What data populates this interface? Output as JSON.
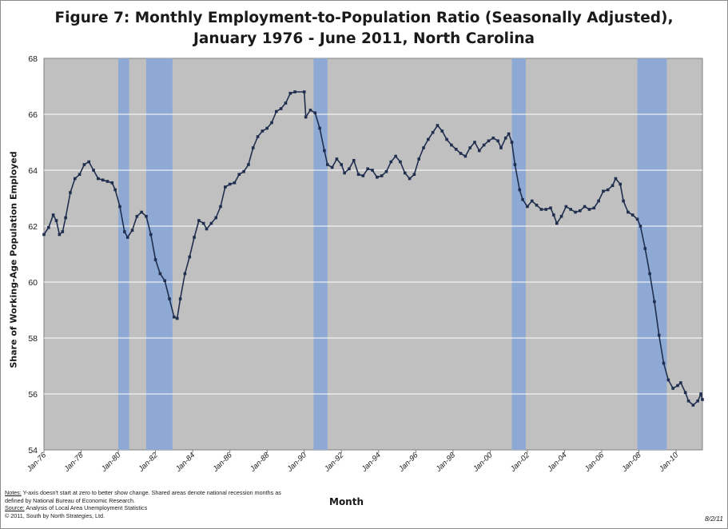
{
  "title_line1": "Figure 7: Monthly Employment-to-Population  Ratio (Seasonally Adjusted),",
  "title_line2": "January 1976 - June 2011, North Carolina",
  "notes": {
    "line1_label": "Notes:",
    "line1_text": " Y-axis doesn't start at zero to better show change.  Shared areas denote national recession months as",
    "line2_text": "defined by National Bureau of Economic Research.",
    "line3_label": "Source:",
    "line3_text": "  Analysis of Local Area Unemployment Statistics",
    "line4_text": "© 2011, South by North Strategies, Ltd."
  },
  "date_stamp": "8/2/11",
  "colors": {
    "plot_bg": "#c0c0c0",
    "gridline": "#ffffff",
    "recession": "#8eaad4",
    "series": "#1f2e4e"
  },
  "chart_data": {
    "type": "line",
    "title": "Figure 7: Monthly Employment-to-Population  Ratio (Seasonally Adjusted), January 1976 - June 2011, North Carolina",
    "xlabel": "Month",
    "ylabel": "Share of  Working-Age Population  Employed",
    "ylim": [
      54,
      68
    ],
    "yticks": [
      54,
      56,
      58,
      60,
      62,
      64,
      66,
      68
    ],
    "xlim": [
      "1976-01",
      "2011-06"
    ],
    "xticks": [
      "Jan-76",
      "Jan-78",
      "Jan-80",
      "Jan-82",
      "Jan-84",
      "Jan-86",
      "Jan-88",
      "Jan-90",
      "Jan-92",
      "Jan-94",
      "Jan-96",
      "Jan-98",
      "Jan-00",
      "Jan-02",
      "Jan-04",
      "Jan-06",
      "Jan-08",
      "Jan-10"
    ],
    "grid": true,
    "recessions": [
      {
        "start": "1980-01",
        "end": "1980-07"
      },
      {
        "start": "1981-07",
        "end": "1982-11"
      },
      {
        "start": "1990-07",
        "end": "1991-03"
      },
      {
        "start": "2001-03",
        "end": "2001-11"
      },
      {
        "start": "2007-12",
        "end": "2009-06"
      }
    ],
    "series": [
      {
        "marker": "square",
        "points": [
          [
            "1976-01",
            61.7
          ],
          [
            "1976-04",
            61.95
          ],
          [
            "1976-07",
            62.4
          ],
          [
            "1976-09",
            62.2
          ],
          [
            "1976-11",
            61.7
          ],
          [
            "1977-01",
            61.8
          ],
          [
            "1977-03",
            62.3
          ],
          [
            "1977-06",
            63.2
          ],
          [
            "1977-09",
            63.7
          ],
          [
            "1977-12",
            63.85
          ],
          [
            "1978-03",
            64.2
          ],
          [
            "1978-06",
            64.3
          ],
          [
            "1978-09",
            64.0
          ],
          [
            "1978-12",
            63.7
          ],
          [
            "1979-03",
            63.65
          ],
          [
            "1979-06",
            63.6
          ],
          [
            "1979-09",
            63.55
          ],
          [
            "1979-11",
            63.3
          ],
          [
            "1980-02",
            62.7
          ],
          [
            "1980-05",
            61.8
          ],
          [
            "1980-07",
            61.6
          ],
          [
            "1980-10",
            61.85
          ],
          [
            "1981-01",
            62.35
          ],
          [
            "1981-04",
            62.5
          ],
          [
            "1981-07",
            62.35
          ],
          [
            "1981-10",
            61.7
          ],
          [
            "1982-01",
            60.8
          ],
          [
            "1982-04",
            60.3
          ],
          [
            "1982-07",
            60.05
          ],
          [
            "1982-10",
            59.4
          ],
          [
            "1983-01",
            58.75
          ],
          [
            "1983-03",
            58.7
          ],
          [
            "1983-05",
            59.4
          ],
          [
            "1983-08",
            60.3
          ],
          [
            "1983-11",
            60.9
          ],
          [
            "1984-02",
            61.6
          ],
          [
            "1984-05",
            62.2
          ],
          [
            "1984-08",
            62.1
          ],
          [
            "1984-10",
            61.9
          ],
          [
            "1985-01",
            62.1
          ],
          [
            "1985-04",
            62.3
          ],
          [
            "1985-07",
            62.7
          ],
          [
            "1985-10",
            63.4
          ],
          [
            "1986-01",
            63.5
          ],
          [
            "1986-04",
            63.55
          ],
          [
            "1986-07",
            63.85
          ],
          [
            "1986-10",
            63.95
          ],
          [
            "1987-01",
            64.2
          ],
          [
            "1987-04",
            64.8
          ],
          [
            "1987-07",
            65.2
          ],
          [
            "1987-10",
            65.4
          ],
          [
            "1988-01",
            65.5
          ],
          [
            "1988-04",
            65.7
          ],
          [
            "1988-07",
            66.1
          ],
          [
            "1988-10",
            66.2
          ],
          [
            "1989-01",
            66.4
          ],
          [
            "1989-04",
            66.75
          ],
          [
            "1989-07",
            66.8
          ],
          [
            "1990-01",
            66.8
          ],
          [
            "1990-02",
            65.9
          ],
          [
            "1990-05",
            66.15
          ],
          [
            "1990-08",
            66.05
          ],
          [
            "1990-11",
            65.5
          ],
          [
            "1991-02",
            64.7
          ],
          [
            "1991-04",
            64.2
          ],
          [
            "1991-07",
            64.1
          ],
          [
            "1991-10",
            64.4
          ],
          [
            "1992-01",
            64.2
          ],
          [
            "1992-03",
            63.9
          ],
          [
            "1992-06",
            64.05
          ],
          [
            "1992-09",
            64.35
          ],
          [
            "1992-12",
            63.85
          ],
          [
            "1993-03",
            63.8
          ],
          [
            "1993-06",
            64.05
          ],
          [
            "1993-09",
            64.0
          ],
          [
            "1993-12",
            63.75
          ],
          [
            "1994-03",
            63.8
          ],
          [
            "1994-06",
            63.95
          ],
          [
            "1994-09",
            64.3
          ],
          [
            "1994-12",
            64.5
          ],
          [
            "1995-03",
            64.3
          ],
          [
            "1995-06",
            63.9
          ],
          [
            "1995-09",
            63.7
          ],
          [
            "1995-12",
            63.85
          ],
          [
            "1996-03",
            64.4
          ],
          [
            "1996-06",
            64.8
          ],
          [
            "1996-09",
            65.1
          ],
          [
            "1996-12",
            65.35
          ],
          [
            "1997-03",
            65.6
          ],
          [
            "1997-06",
            65.4
          ],
          [
            "1997-09",
            65.1
          ],
          [
            "1997-12",
            64.9
          ],
          [
            "1998-03",
            64.75
          ],
          [
            "1998-06",
            64.6
          ],
          [
            "1998-09",
            64.5
          ],
          [
            "1998-12",
            64.8
          ],
          [
            "1999-03",
            65.0
          ],
          [
            "1999-06",
            64.7
          ],
          [
            "1999-09",
            64.9
          ],
          [
            "1999-12",
            65.05
          ],
          [
            "2000-03",
            65.15
          ],
          [
            "2000-06",
            65.05
          ],
          [
            "2000-08",
            64.8
          ],
          [
            "2000-11",
            65.15
          ],
          [
            "2001-01",
            65.3
          ],
          [
            "2001-03",
            65.0
          ],
          [
            "2001-05",
            64.2
          ],
          [
            "2001-08",
            63.3
          ],
          [
            "2001-10",
            62.95
          ],
          [
            "2002-01",
            62.7
          ],
          [
            "2002-04",
            62.9
          ],
          [
            "2002-07",
            62.75
          ],
          [
            "2002-10",
            62.6
          ],
          [
            "2003-01",
            62.6
          ],
          [
            "2003-04",
            62.65
          ],
          [
            "2003-06",
            62.4
          ],
          [
            "2003-08",
            62.1
          ],
          [
            "2003-11",
            62.35
          ],
          [
            "2004-02",
            62.7
          ],
          [
            "2004-05",
            62.6
          ],
          [
            "2004-08",
            62.5
          ],
          [
            "2004-11",
            62.55
          ],
          [
            "2005-02",
            62.7
          ],
          [
            "2005-05",
            62.6
          ],
          [
            "2005-08",
            62.65
          ],
          [
            "2005-11",
            62.9
          ],
          [
            "2006-02",
            63.25
          ],
          [
            "2006-05",
            63.3
          ],
          [
            "2006-08",
            63.45
          ],
          [
            "2006-10",
            63.7
          ],
          [
            "2007-01",
            63.5
          ],
          [
            "2007-03",
            62.9
          ],
          [
            "2007-06",
            62.5
          ],
          [
            "2007-09",
            62.4
          ],
          [
            "2007-12",
            62.25
          ],
          [
            "2008-02",
            62.0
          ],
          [
            "2008-05",
            61.2
          ],
          [
            "2008-08",
            60.3
          ],
          [
            "2008-11",
            59.3
          ],
          [
            "2009-02",
            58.1
          ],
          [
            "2009-05",
            57.1
          ],
          [
            "2009-08",
            56.5
          ],
          [
            "2009-11",
            56.2
          ],
          [
            "2010-02",
            56.3
          ],
          [
            "2010-04",
            56.4
          ],
          [
            "2010-07",
            56.05
          ],
          [
            "2010-09",
            55.75
          ],
          [
            "2010-12",
            55.6
          ],
          [
            "2011-03",
            55.75
          ],
          [
            "2011-05",
            56.0
          ],
          [
            "2011-06",
            55.8
          ]
        ]
      }
    ]
  }
}
